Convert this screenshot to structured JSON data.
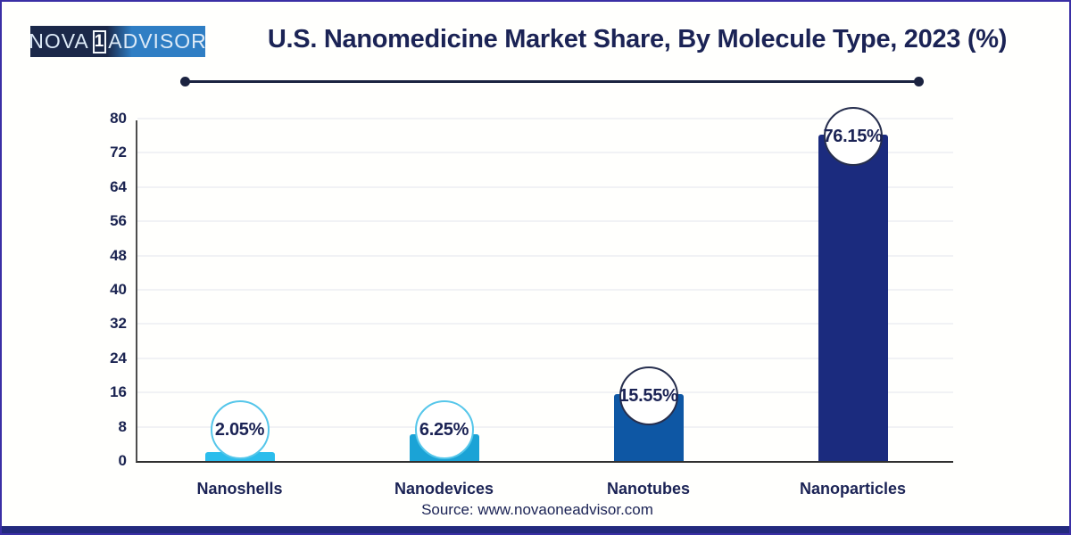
{
  "page": {
    "border_color": "#3a2fa5",
    "footer_bar_color": "#232a7e",
    "background": "#fffffd"
  },
  "logo": {
    "part1": "NOVA",
    "badge": "1",
    "part2": "ADVISOR",
    "part1_bg": "#1b2849",
    "part2_bg": "#2f7ec4"
  },
  "header": {
    "title": "U.S. Nanomedicine Market Share, By Molecule Type, 2023 (%)",
    "title_color": "#1b2355"
  },
  "source": {
    "text": "Source: www.novaoneadvisor.com"
  },
  "chart_data": {
    "type": "bar",
    "title": "U.S. Nanomedicine Market Share, By Molecule Type, 2023 (%)",
    "categories": [
      "Nanoshells",
      "Nanodevices",
      "Nanotubes",
      "Nanoparticles"
    ],
    "values": [
      2.05,
      6.25,
      15.55,
      76.15
    ],
    "data_labels": [
      "2.05%",
      "6.25%",
      "15.55%",
      "76.15%"
    ],
    "bar_colors": [
      "#2bbdec",
      "#1ba3d6",
      "#0e57a4",
      "#1b2b7e"
    ],
    "bubble_border_colors": [
      "#55c6ea",
      "#55c6ea",
      "#272f4e",
      "#272f4e"
    ],
    "xlabel": "",
    "ylabel": "",
    "ylim": [
      0,
      80
    ],
    "yticks": [
      0,
      8,
      16,
      24,
      32,
      40,
      48,
      56,
      64,
      72,
      80
    ],
    "grid": "faint-horizontal",
    "legend": "none"
  }
}
